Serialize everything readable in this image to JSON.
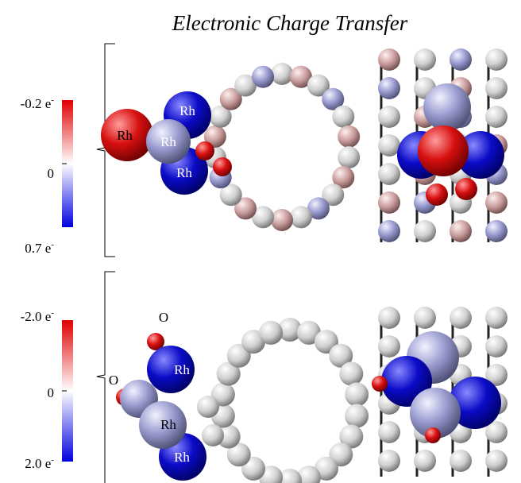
{
  "title": "Electronic Charge Transfer",
  "panels": [
    {
      "colorbar": {
        "top": {
          "text": "-0.2 e",
          "sup": "-"
        },
        "middle": "0",
        "bottom": {
          "text": "0.7 e",
          "sup": "-"
        }
      },
      "atom_labels": [
        "Rh",
        "Rh",
        "Rh",
        "Rh"
      ]
    },
    {
      "colorbar": {
        "top": {
          "text": "-2.0 e",
          "sup": "-"
        },
        "middle": "0",
        "bottom": {
          "text": "2.0 e",
          "sup": "-"
        }
      },
      "atom_labels": [
        "O",
        "O",
        "Rh",
        "Rh",
        "Rh"
      ]
    }
  ]
}
